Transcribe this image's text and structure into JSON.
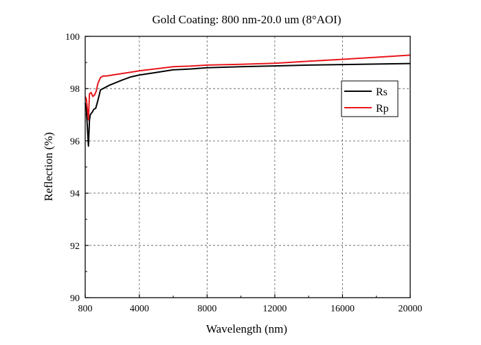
{
  "chart_data": {
    "type": "line",
    "title": "Gold Coating: 800 nm-20.0 um (8°AOI)",
    "xlabel": "Wavelength (nm)",
    "ylabel": "Reflection (%)",
    "xlim": [
      800,
      20000
    ],
    "ylim": [
      90,
      100
    ],
    "x_ticks": [
      800,
      4000,
      8000,
      12000,
      16000,
      20000
    ],
    "y_ticks": [
      90,
      92,
      94,
      96,
      98,
      100
    ],
    "grid": true,
    "legend_position": "top-right",
    "series": [
      {
        "name": "Rs",
        "color": "#000000",
        "x": [
          800,
          870,
          930,
          990,
          1050,
          1100,
          1150,
          1220,
          1300,
          1420,
          1550,
          1700,
          1850,
          2000,
          2200,
          2500,
          3000,
          3500,
          4000,
          5000,
          6000,
          7000,
          8000,
          10000,
          12000,
          14000,
          16000,
          18000,
          20000
        ],
        "values": [
          97.45,
          97.2,
          96.5,
          95.8,
          96.8,
          97.0,
          97.05,
          97.1,
          97.2,
          97.25,
          97.55,
          97.95,
          98.0,
          98.05,
          98.12,
          98.2,
          98.33,
          98.45,
          98.52,
          98.62,
          98.72,
          98.75,
          98.8,
          98.84,
          98.87,
          98.9,
          98.92,
          98.94,
          98.96
        ]
      },
      {
        "name": "Rp",
        "color": "#e8141a",
        "x": [
          800,
          870,
          930,
          990,
          1050,
          1150,
          1250,
          1350,
          1450,
          1550,
          1700,
          1850,
          2000,
          2200,
          2500,
          3000,
          3500,
          4000,
          5000,
          6000,
          7000,
          8000,
          10000,
          12000,
          14000,
          16000,
          18000,
          20000
        ],
        "values": [
          97.7,
          97.6,
          97.2,
          96.8,
          97.8,
          97.85,
          97.7,
          97.75,
          97.9,
          98.2,
          98.42,
          98.48,
          98.48,
          98.5,
          98.53,
          98.58,
          98.63,
          98.68,
          98.76,
          98.84,
          98.86,
          98.9,
          98.93,
          98.97,
          99.05,
          99.12,
          99.2,
          99.28
        ]
      }
    ]
  }
}
